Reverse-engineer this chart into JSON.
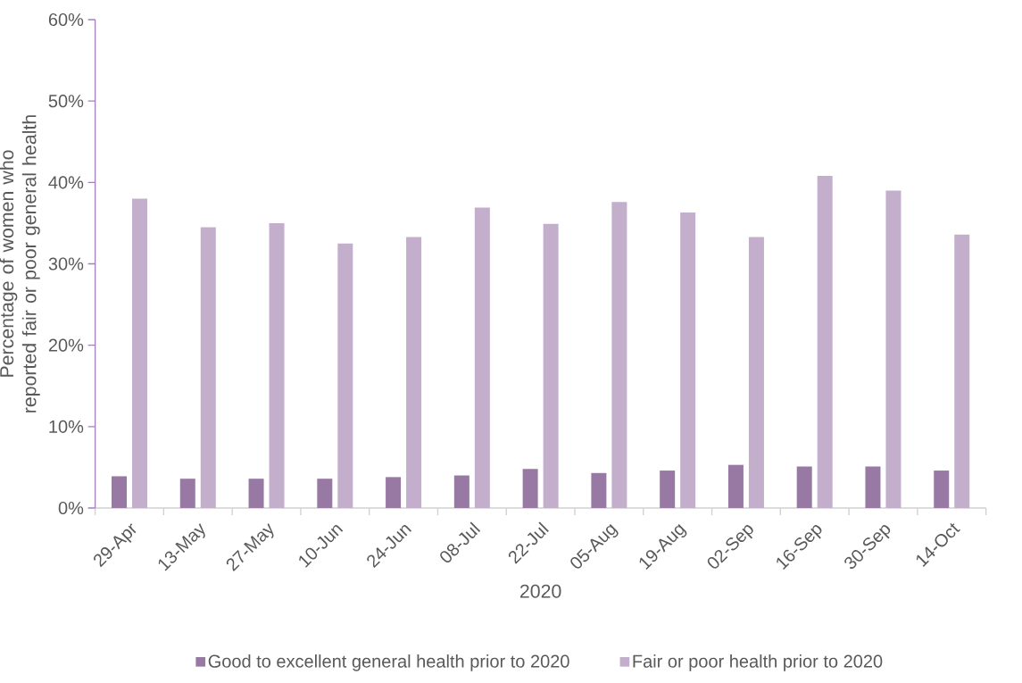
{
  "chart_data": {
    "type": "bar",
    "xlabel": "2020",
    "ylabel": "Percentage of women who reported fair or poor general health",
    "categories": [
      "29-Apr",
      "13-May",
      "27-May",
      "10-Jun",
      "24-Jun",
      "08-Jul",
      "22-Jul",
      "05-Aug",
      "19-Aug",
      "02-Sep",
      "16-Sep",
      "30-Sep",
      "14-Oct"
    ],
    "series": [
      {
        "name": "Good to excellent general health prior to 2020",
        "color": "#9779a3",
        "values": [
          3.9,
          3.6,
          3.6,
          3.6,
          3.8,
          4.0,
          4.8,
          4.3,
          4.6,
          5.3,
          5.1,
          5.1,
          4.6
        ]
      },
      {
        "name": "Fair or poor health prior to 2020",
        "color": "#c3aecb",
        "values": [
          38.0,
          34.5,
          35.0,
          32.5,
          33.3,
          36.9,
          34.9,
          37.6,
          36.3,
          33.3,
          40.8,
          39.0,
          33.6
        ]
      }
    ],
    "ylim": [
      0,
      60
    ],
    "yticks": [
      {
        "value": 0,
        "label": "0%"
      },
      {
        "value": 10,
        "label": "10%"
      },
      {
        "value": 20,
        "label": "20%"
      },
      {
        "value": 30,
        "label": "30%"
      },
      {
        "value": 40,
        "label": "40%"
      },
      {
        "value": 50,
        "label": "50%"
      },
      {
        "value": 60,
        "label": "60%"
      }
    ],
    "grid": false,
    "legend": "bottom"
  }
}
